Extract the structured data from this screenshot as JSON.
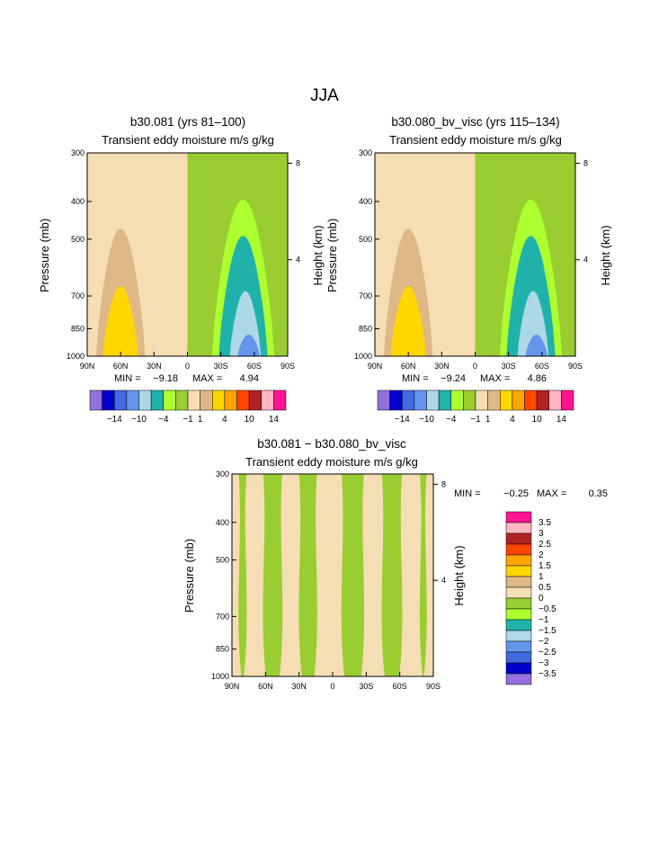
{
  "figure": {
    "title": "JJA"
  },
  "colors": {
    "palette": [
      "#9370DB",
      "#0000CD",
      "#4169E1",
      "#6495ED",
      "#ADD8E6",
      "#20B2AA",
      "#ADFF2F",
      "#9ACD32",
      "#F5DEB3",
      "#DEB887",
      "#FFD700",
      "#FFA500",
      "#FF4500",
      "#B22222",
      "#FFB6C1",
      "#FF1493"
    ]
  },
  "chart_data": [
    {
      "id": "a",
      "type": "contour",
      "title": "b30.081 (yrs 81–100)",
      "subtitle": "Transient eddy moisture m/s g/kg",
      "ylabel": "Pressure (mb)",
      "y2label": "Height (km)",
      "xticks": [
        "90N",
        "60N",
        "30N",
        "0",
        "30S",
        "60S",
        "90S"
      ],
      "yticks": [
        "300",
        "400",
        "500",
        "700",
        "850",
        "1000"
      ],
      "yticks_values": [
        300,
        400,
        500,
        700,
        850,
        1000
      ],
      "y2ticks": [
        "8",
        "4"
      ],
      "y2ticks_values_km": [
        8,
        4
      ],
      "xlim": [
        90,
        -90
      ],
      "ylim": [
        1000,
        300
      ],
      "min_label": "MIN =",
      "min_value": "−9.18",
      "max_label": "MAX =",
      "max_value": "4.94",
      "colorbar_ticks": [
        "−14",
        "−10",
        "−4",
        "−1",
        "1",
        "4",
        "10",
        "14"
      ],
      "regions": [
        {
          "name": "positive-region-0-1",
          "level": "0 to 1",
          "color": "#F5DEB3",
          "lat": [
            90,
            0
          ],
          "p": [
            300,
            1000
          ]
        },
        {
          "name": "negative-region-0-neg1",
          "level": "0 to −1",
          "color": "#9ACD32",
          "lat": [
            0,
            -90
          ],
          "p": [
            300,
            1000
          ]
        },
        {
          "name": "contour-1-4",
          "level": "1 to 4",
          "color": "#DEB887",
          "lat_center": 60,
          "lat_halfwidth": 22,
          "p_top": 470
        },
        {
          "name": "contour-4-10",
          "level": "4 to 10",
          "color": "#FFD700",
          "lat_center": 60,
          "lat_halfwidth": 16,
          "p_top": 660
        },
        {
          "name": "contour-neg1-neg4",
          "level": "−1 to −4",
          "color": "#ADFF2F",
          "lat_center": -50,
          "lat_halfwidth": 28,
          "p_top": 395
        },
        {
          "name": "contour-neg4-neg10",
          "level": "−4 to −10",
          "color": "#20B2AA",
          "lat_center": -50,
          "lat_halfwidth": 22,
          "p_top": 490
        },
        {
          "name": "contour-neg10-neg14",
          "level": "−10 to −14",
          "color": "#ADD8E6",
          "lat_center": -52,
          "lat_halfwidth": 14,
          "p_top": 680
        },
        {
          "name": "contour-below-neg14",
          "level": "< −14",
          "color": "#6495ED",
          "lat_center": -55,
          "lat_halfwidth": 10,
          "p_top": 880
        }
      ]
    },
    {
      "id": "b",
      "type": "contour",
      "title": "b30.080_bv_visc (yrs 115–134)",
      "subtitle": "Transient eddy moisture m/s g/kg",
      "ylabel": "Pressure (mb)",
      "y2label": "Height (km)",
      "xticks": [
        "90N",
        "60N",
        "30N",
        "0",
        "30S",
        "60S",
        "90S"
      ],
      "yticks": [
        "300",
        "400",
        "500",
        "700",
        "850",
        "1000"
      ],
      "yticks_values": [
        300,
        400,
        500,
        700,
        850,
        1000
      ],
      "y2ticks": [
        "8",
        "4"
      ],
      "y2ticks_values_km": [
        8,
        4
      ],
      "xlim": [
        90,
        -90
      ],
      "ylim": [
        1000,
        300
      ],
      "min_label": "MIN =",
      "min_value": "−9.24",
      "max_label": "MAX =",
      "max_value": "4.86",
      "colorbar_ticks": [
        "−14",
        "−10",
        "−4",
        "−1",
        "1",
        "4",
        "10",
        "14"
      ],
      "regions": [
        {
          "name": "positive-region-0-1",
          "level": "0 to 1",
          "color": "#F5DEB3",
          "lat": [
            90,
            0
          ],
          "p": [
            300,
            1000
          ]
        },
        {
          "name": "negative-region-0-neg1",
          "level": "0 to −1",
          "color": "#9ACD32",
          "lat": [
            0,
            -90
          ],
          "p": [
            300,
            1000
          ]
        },
        {
          "name": "contour-1-4",
          "level": "1 to 4",
          "color": "#DEB887",
          "lat_center": 60,
          "lat_halfwidth": 22,
          "p_top": 470
        },
        {
          "name": "contour-4-10",
          "level": "4 to 10",
          "color": "#FFD700",
          "lat_center": 60,
          "lat_halfwidth": 16,
          "p_top": 660
        },
        {
          "name": "contour-neg1-neg4",
          "level": "−1 to −4",
          "color": "#ADFF2F",
          "lat_center": -50,
          "lat_halfwidth": 28,
          "p_top": 395
        },
        {
          "name": "contour-neg4-neg10",
          "level": "−4 to −10",
          "color": "#20B2AA",
          "lat_center": -50,
          "lat_halfwidth": 22,
          "p_top": 490
        },
        {
          "name": "contour-neg10-neg14",
          "level": "−10 to −14",
          "color": "#ADD8E6",
          "lat_center": -52,
          "lat_halfwidth": 14,
          "p_top": 680
        },
        {
          "name": "contour-below-neg14",
          "level": "< −14",
          "color": "#6495ED",
          "lat_center": -55,
          "lat_halfwidth": 10,
          "p_top": 880
        }
      ]
    },
    {
      "id": "c",
      "type": "contour",
      "title": "b30.081 − b30.080_bv_visc",
      "subtitle": "Transient eddy moisture m/s g/kg",
      "ylabel": "Pressure (mb)",
      "y2label": "Height (km)",
      "xticks": [
        "90N",
        "60N",
        "30N",
        "0",
        "30S",
        "60S",
        "90S"
      ],
      "yticks": [
        "300",
        "400",
        "500",
        "700",
        "850",
        "1000"
      ],
      "yticks_values": [
        300,
        400,
        500,
        700,
        850,
        1000
      ],
      "y2ticks": [
        "8",
        "4"
      ],
      "y2ticks_values_km": [
        8,
        4
      ],
      "xlim": [
        90,
        -90
      ],
      "ylim": [
        1000,
        300
      ],
      "min_label": "MIN =",
      "min_value": "−0.25",
      "max_label": "MAX =",
      "max_value": "0.35",
      "legend_labels": [
        "3.5",
        "3",
        "2.5",
        "2",
        "1.5",
        "1",
        "0.5",
        "0",
        "−0.5",
        "−1",
        "−1.5",
        "−2",
        "−2.5",
        "−3",
        "−3.5"
      ],
      "bands": [
        {
          "name": "diff-band-pos",
          "level": "0 to 0.5",
          "color": "#F5DEB3"
        },
        {
          "name": "diff-band-neg",
          "level": "−0.5 to 0",
          "color": "#9ACD32"
        }
      ],
      "band_boundaries_lat": [
        84,
        77,
        62,
        45,
        30,
        14,
        -8,
        -28,
        -44,
        -62,
        -78,
        -84
      ]
    }
  ]
}
